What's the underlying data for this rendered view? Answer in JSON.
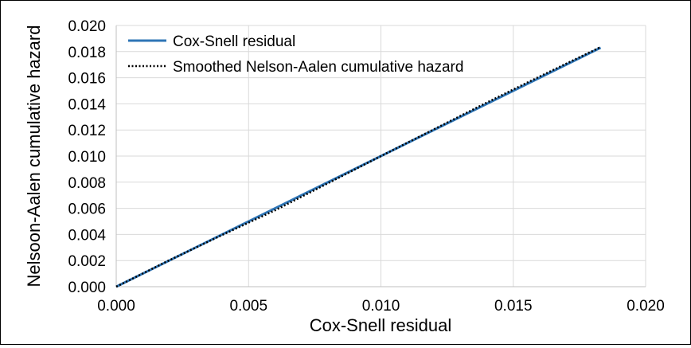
{
  "chart_data": {
    "type": "line",
    "title": "",
    "xlabel": "Cox-Snell residual",
    "ylabel": "Nelsoon-Aalen cumulative hazard",
    "xlim": [
      0.0,
      0.02
    ],
    "ylim": [
      0.0,
      0.02
    ],
    "x_ticks": [
      "0.000",
      "0.005",
      "0.010",
      "0.015",
      "0.020"
    ],
    "y_ticks": [
      "0.000",
      "0.002",
      "0.004",
      "0.006",
      "0.008",
      "0.010",
      "0.012",
      "0.014",
      "0.016",
      "0.018",
      "0.020"
    ],
    "grid": true,
    "legend_position": "top-left",
    "series": [
      {
        "name": "Cox-Snell residual",
        "style": "solid",
        "color": "#2E75B6",
        "x": [
          0.0,
          0.0183
        ],
        "y": [
          0.0,
          0.0183
        ]
      },
      {
        "name": "Smoothed Nelson-Aalen cumulative hazard",
        "style": "dotted",
        "color": "#000000",
        "x": [
          0.0,
          0.002,
          0.004,
          0.006,
          0.008,
          0.01,
          0.012,
          0.014,
          0.016,
          0.0183
        ],
        "y": [
          0.0,
          0.00202,
          0.00396,
          0.00585,
          0.00792,
          0.01,
          0.01205,
          0.0141,
          0.0161,
          0.01835
        ]
      }
    ]
  }
}
